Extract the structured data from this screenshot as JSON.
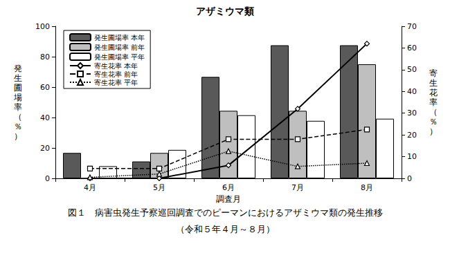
{
  "chart_data": {
    "type": "bar",
    "title": "アザミウマ類",
    "annotations": [
      "図１　病害虫発生予察巡回調査でのピーマンにおけるアザミウマ類の発生推移",
      "（令和５年４月～８月）"
    ],
    "x_label": "調査月",
    "y_label": "発生圃場率（％）",
    "y2_label": "寄生花率（％）",
    "categories": [
      "4月",
      "5月",
      "6月",
      "7月",
      "8月"
    ],
    "ylim": [
      0,
      100
    ],
    "yticks": [
      0,
      20,
      40,
      60,
      80,
      100
    ],
    "y2lim": [
      0,
      70
    ],
    "y2ticks": [
      0,
      10,
      20,
      30,
      40,
      50,
      60,
      70
    ],
    "grid": false,
    "legend": "upper left",
    "series": [
      {
        "name": "発生圃場率 本年",
        "type": "bar",
        "color": "#595959",
        "values": [
          16.7,
          11.1,
          66.7,
          87.5,
          87.5
        ]
      },
      {
        "name": "発生圃場率 前年",
        "type": "bar",
        "color": "#bfbfbf",
        "values": [
          0,
          16.7,
          44.4,
          44.4,
          75.0
        ]
      },
      {
        "name": "発生圃場率 平年",
        "type": "bar",
        "color": "#ffffff",
        "values": [
          8.0,
          18.7,
          41.5,
          37.8,
          39.2
        ]
      },
      {
        "name": "寄生花率 本年",
        "type": "line",
        "axis": "y2",
        "color": "#000000",
        "line_style": "solid",
        "marker": "diamond",
        "values": [
          0,
          0,
          6.0,
          32.0,
          62.0
        ]
      },
      {
        "name": "寄生花率 前年",
        "type": "line",
        "axis": "y2",
        "color": "#000000",
        "line_style": "dashed",
        "marker": "square",
        "values": [
          4.5,
          4.5,
          18.0,
          18.0,
          22.5
        ]
      },
      {
        "name": "寄生花率 平年",
        "type": "line",
        "axis": "y2",
        "color": "#000000",
        "line_style": "dotted",
        "marker": "triangle",
        "values": [
          0.5,
          2.0,
          12.5,
          5.5,
          7.0
        ]
      }
    ]
  }
}
